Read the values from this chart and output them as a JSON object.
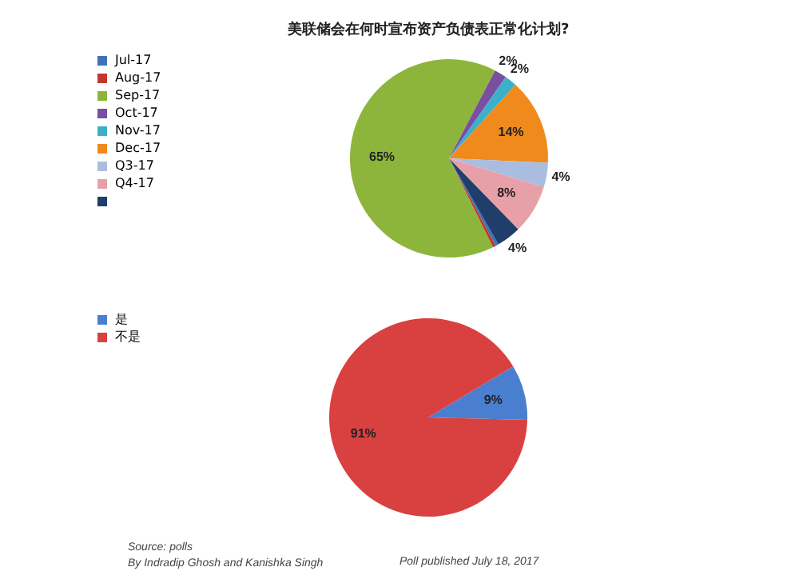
{
  "chart_data": [
    {
      "type": "pie",
      "title": "美联储会在何时宣布资产负债表正常化计划?",
      "categories": [
        "Jul-17",
        "Aug-17",
        "Sep-17",
        "Oct-17",
        "Nov-17",
        "Dec-17",
        "Q3-17",
        "Q4-17",
        null
      ],
      "values": [
        0.5,
        0.5,
        65,
        2,
        2,
        14,
        4,
        8,
        4
      ],
      "colors": [
        "#3f72b8",
        "#c0392b",
        "#8db53c",
        "#7a4ea0",
        "#3bb0c9",
        "#f08a1c",
        "#a9bde0",
        "#e8a0a8",
        "#1f3f6a"
      ],
      "value_labels": [
        null,
        null,
        "65%",
        "2%",
        "2%",
        "14%",
        "4%",
        "8%",
        "4%"
      ],
      "legend": "left"
    },
    {
      "type": "pie",
      "categories": [
        "是",
        "不是"
      ],
      "values": [
        9,
        91
      ],
      "colors": [
        "#4a7fd0",
        "#d94040"
      ],
      "value_labels": [
        "9%",
        "91%"
      ],
      "legend": "left",
      "annotations": [
        "Source: polls",
        "By Indradip Ghosh and Kanishka Singh",
        "Poll published July 18, 2017"
      ]
    }
  ]
}
